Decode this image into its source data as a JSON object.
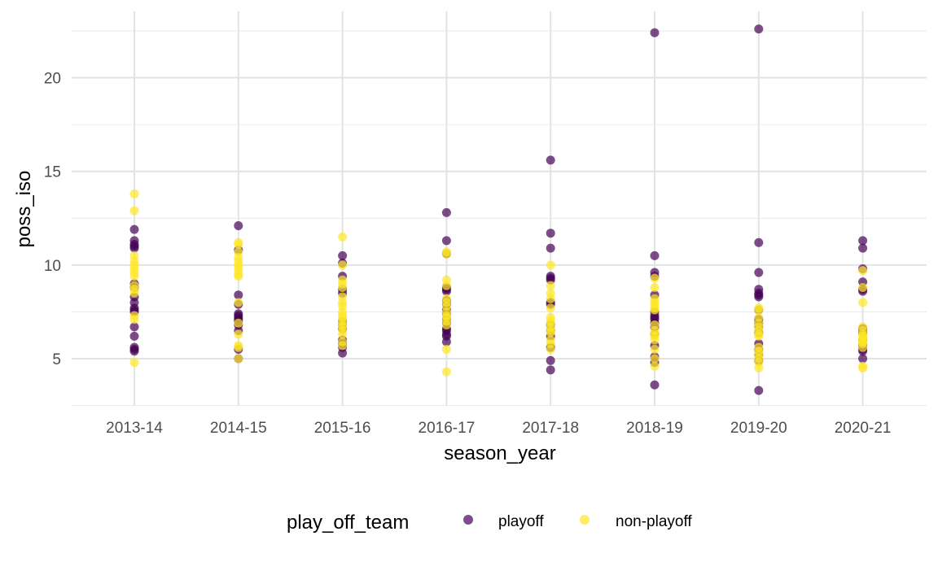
{
  "chart_data": {
    "type": "scatter",
    "xlabel": "season_year",
    "ylabel": "poss_iso",
    "categories": [
      "2013-14",
      "2014-15",
      "2015-16",
      "2016-17",
      "2017-18",
      "2018-19",
      "2019-20",
      "2020-21"
    ],
    "ylim": [
      2.5,
      23.5
    ],
    "yticks": [
      5,
      10,
      15,
      20
    ],
    "grid": true,
    "legend": {
      "title": "play_off_team",
      "position": "bottom",
      "entries": [
        {
          "label": "playoff",
          "color": "#440154"
        },
        {
          "label": "non-playoff",
          "color": "#FDE725"
        }
      ]
    },
    "series": [
      {
        "name": "playoff",
        "color": "#440154",
        "points": [
          [
            "2013-14",
            11.9
          ],
          [
            "2013-14",
            11.3
          ],
          [
            "2013-14",
            11.1
          ],
          [
            "2013-14",
            11.0
          ],
          [
            "2013-14",
            10.9
          ],
          [
            "2013-14",
            9.0
          ],
          [
            "2013-14",
            8.8
          ],
          [
            "2013-14",
            8.3
          ],
          [
            "2013-14",
            8.0
          ],
          [
            "2013-14",
            7.7
          ],
          [
            "2013-14",
            7.6
          ],
          [
            "2013-14",
            7.5
          ],
          [
            "2013-14",
            6.7
          ],
          [
            "2013-14",
            6.2
          ],
          [
            "2013-14",
            5.6
          ],
          [
            "2013-14",
            5.5
          ],
          [
            "2013-14",
            5.4
          ],
          [
            "2014-15",
            12.1
          ],
          [
            "2014-15",
            10.8
          ],
          [
            "2014-15",
            8.4
          ],
          [
            "2014-15",
            7.9
          ],
          [
            "2014-15",
            7.4
          ],
          [
            "2014-15",
            7.3
          ],
          [
            "2014-15",
            7.2
          ],
          [
            "2014-15",
            7.1
          ],
          [
            "2014-15",
            7.0
          ],
          [
            "2014-15",
            6.8
          ],
          [
            "2014-15",
            6.5
          ],
          [
            "2014-15",
            5.5
          ],
          [
            "2014-15",
            5.0
          ],
          [
            "2015-16",
            10.5
          ],
          [
            "2015-16",
            10.1
          ],
          [
            "2015-16",
            9.4
          ],
          [
            "2015-16",
            8.7
          ],
          [
            "2015-16",
            8.5
          ],
          [
            "2015-16",
            7.0
          ],
          [
            "2015-16",
            6.8
          ],
          [
            "2015-16",
            6.6
          ],
          [
            "2015-16",
            6.0
          ],
          [
            "2015-16",
            5.8
          ],
          [
            "2015-16",
            5.6
          ],
          [
            "2015-16",
            5.3
          ],
          [
            "2016-17",
            12.8
          ],
          [
            "2016-17",
            11.3
          ],
          [
            "2016-17",
            10.6
          ],
          [
            "2016-17",
            8.8
          ],
          [
            "2016-17",
            8.7
          ],
          [
            "2016-17",
            8.6
          ],
          [
            "2016-17",
            8.1
          ],
          [
            "2016-17",
            7.9
          ],
          [
            "2016-17",
            7.6
          ],
          [
            "2016-17",
            7.4
          ],
          [
            "2016-17",
            7.1
          ],
          [
            "2016-17",
            6.9
          ],
          [
            "2016-17",
            6.6
          ],
          [
            "2016-17",
            6.5
          ],
          [
            "2016-17",
            6.3
          ],
          [
            "2016-17",
            6.2
          ],
          [
            "2016-17",
            5.9
          ],
          [
            "2017-18",
            15.6
          ],
          [
            "2017-18",
            11.7
          ],
          [
            "2017-18",
            10.9
          ],
          [
            "2017-18",
            9.4
          ],
          [
            "2017-18",
            9.3
          ],
          [
            "2017-18",
            9.2
          ],
          [
            "2017-18",
            8.0
          ],
          [
            "2017-18",
            7.9
          ],
          [
            "2017-18",
            6.8
          ],
          [
            "2017-18",
            6.5
          ],
          [
            "2017-18",
            6.2
          ],
          [
            "2017-18",
            5.6
          ],
          [
            "2017-18",
            4.9
          ],
          [
            "2017-18",
            4.4
          ],
          [
            "2018-19",
            22.4
          ],
          [
            "2018-19",
            10.5
          ],
          [
            "2018-19",
            9.6
          ],
          [
            "2018-19",
            9.4
          ],
          [
            "2018-19",
            8.4
          ],
          [
            "2018-19",
            7.5
          ],
          [
            "2018-19",
            7.3
          ],
          [
            "2018-19",
            7.2
          ],
          [
            "2018-19",
            7.1
          ],
          [
            "2018-19",
            6.9
          ],
          [
            "2018-19",
            6.7
          ],
          [
            "2018-19",
            6.3
          ],
          [
            "2018-19",
            5.7
          ],
          [
            "2018-19",
            5.1
          ],
          [
            "2018-19",
            4.8
          ],
          [
            "2018-19",
            3.6
          ],
          [
            "2019-20",
            22.6
          ],
          [
            "2019-20",
            11.2
          ],
          [
            "2019-20",
            9.6
          ],
          [
            "2019-20",
            8.7
          ],
          [
            "2019-20",
            8.5
          ],
          [
            "2019-20",
            8.4
          ],
          [
            "2019-20",
            8.3
          ],
          [
            "2019-20",
            7.6
          ],
          [
            "2019-20",
            7.1
          ],
          [
            "2019-20",
            6.9
          ],
          [
            "2019-20",
            6.7
          ],
          [
            "2019-20",
            6.4
          ],
          [
            "2019-20",
            5.8
          ],
          [
            "2019-20",
            5.5
          ],
          [
            "2019-20",
            5.2
          ],
          [
            "2019-20",
            4.9
          ],
          [
            "2019-20",
            3.3
          ],
          [
            "2020-21",
            11.3
          ],
          [
            "2020-21",
            10.9
          ],
          [
            "2020-21",
            9.8
          ],
          [
            "2020-21",
            9.1
          ],
          [
            "2020-21",
            8.7
          ],
          [
            "2020-21",
            8.6
          ],
          [
            "2020-21",
            6.6
          ],
          [
            "2020-21",
            6.5
          ],
          [
            "2020-21",
            6.4
          ],
          [
            "2020-21",
            6.0
          ],
          [
            "2020-21",
            5.7
          ],
          [
            "2020-21",
            5.5
          ],
          [
            "2020-21",
            5.4
          ],
          [
            "2020-21",
            5.0
          ]
        ]
      },
      {
        "name": "non-playoff",
        "color": "#FDE725",
        "points": [
          [
            "2013-14",
            13.8
          ],
          [
            "2013-14",
            12.9
          ],
          [
            "2013-14",
            10.5
          ],
          [
            "2013-14",
            10.2
          ],
          [
            "2013-14",
            10.0
          ],
          [
            "2013-14",
            9.8
          ],
          [
            "2013-14",
            9.6
          ],
          [
            "2013-14",
            9.4
          ],
          [
            "2013-14",
            8.9
          ],
          [
            "2013-14",
            8.7
          ],
          [
            "2013-14",
            8.5
          ],
          [
            "2013-14",
            7.3
          ],
          [
            "2013-14",
            7.1
          ],
          [
            "2013-14",
            4.8
          ],
          [
            "2014-15",
            11.2
          ],
          [
            "2014-15",
            11.1
          ],
          [
            "2014-15",
            10.7
          ],
          [
            "2014-15",
            10.4
          ],
          [
            "2014-15",
            10.2
          ],
          [
            "2014-15",
            10.0
          ],
          [
            "2014-15",
            9.9
          ],
          [
            "2014-15",
            9.7
          ],
          [
            "2014-15",
            9.5
          ],
          [
            "2014-15",
            9.4
          ],
          [
            "2014-15",
            8.0
          ],
          [
            "2014-15",
            6.9
          ],
          [
            "2014-15",
            6.3
          ],
          [
            "2014-15",
            5.7
          ],
          [
            "2014-15",
            5.6
          ],
          [
            "2014-15",
            5.0
          ],
          [
            "2015-16",
            11.5
          ],
          [
            "2015-16",
            10.0
          ],
          [
            "2015-16",
            9.2
          ],
          [
            "2015-16",
            9.0
          ],
          [
            "2015-16",
            8.8
          ],
          [
            "2015-16",
            8.3
          ],
          [
            "2015-16",
            8.0
          ],
          [
            "2015-16",
            7.8
          ],
          [
            "2015-16",
            7.5
          ],
          [
            "2015-16",
            7.3
          ],
          [
            "2015-16",
            7.2
          ],
          [
            "2015-16",
            7.0
          ],
          [
            "2015-16",
            6.8
          ],
          [
            "2015-16",
            6.7
          ],
          [
            "2015-16",
            6.5
          ],
          [
            "2015-16",
            6.3
          ],
          [
            "2015-16",
            5.9
          ],
          [
            "2015-16",
            5.7
          ],
          [
            "2016-17",
            10.7
          ],
          [
            "2016-17",
            10.6
          ],
          [
            "2016-17",
            9.2
          ],
          [
            "2016-17",
            8.9
          ],
          [
            "2016-17",
            8.2
          ],
          [
            "2016-17",
            8.0
          ],
          [
            "2016-17",
            7.8
          ],
          [
            "2016-17",
            7.5
          ],
          [
            "2016-17",
            7.3
          ],
          [
            "2016-17",
            7.2
          ],
          [
            "2016-17",
            7.0
          ],
          [
            "2016-17",
            6.8
          ],
          [
            "2016-17",
            5.5
          ],
          [
            "2016-17",
            4.3
          ],
          [
            "2017-18",
            10.0
          ],
          [
            "2017-18",
            8.9
          ],
          [
            "2017-18",
            8.5
          ],
          [
            "2017-18",
            8.2
          ],
          [
            "2017-18",
            7.7
          ],
          [
            "2017-18",
            7.2
          ],
          [
            "2017-18",
            7.0
          ],
          [
            "2017-18",
            6.9
          ],
          [
            "2017-18",
            6.7
          ],
          [
            "2017-18",
            6.5
          ],
          [
            "2017-18",
            6.4
          ],
          [
            "2017-18",
            6.0
          ],
          [
            "2017-18",
            5.8
          ],
          [
            "2017-18",
            5.5
          ],
          [
            "2018-19",
            9.3
          ],
          [
            "2018-19",
            8.8
          ],
          [
            "2018-19",
            8.2
          ],
          [
            "2018-19",
            8.0
          ],
          [
            "2018-19",
            7.9
          ],
          [
            "2018-19",
            7.7
          ],
          [
            "2018-19",
            7.6
          ],
          [
            "2018-19",
            6.8
          ],
          [
            "2018-19",
            6.5
          ],
          [
            "2018-19",
            6.3
          ],
          [
            "2018-19",
            6.2
          ],
          [
            "2018-19",
            6.0
          ],
          [
            "2018-19",
            5.5
          ],
          [
            "2018-19",
            5.0
          ],
          [
            "2018-19",
            4.6
          ],
          [
            "2019-20",
            7.7
          ],
          [
            "2019-20",
            7.6
          ],
          [
            "2019-20",
            7.2
          ],
          [
            "2019-20",
            6.9
          ],
          [
            "2019-20",
            6.7
          ],
          [
            "2019-20",
            6.5
          ],
          [
            "2019-20",
            6.3
          ],
          [
            "2019-20",
            6.2
          ],
          [
            "2019-20",
            5.6
          ],
          [
            "2019-20",
            5.4
          ],
          [
            "2019-20",
            5.2
          ],
          [
            "2019-20",
            5.0
          ],
          [
            "2019-20",
            4.8
          ],
          [
            "2019-20",
            4.5
          ],
          [
            "2020-21",
            9.7
          ],
          [
            "2020-21",
            8.8
          ],
          [
            "2020-21",
            8.0
          ],
          [
            "2020-21",
            6.7
          ],
          [
            "2020-21",
            6.5
          ],
          [
            "2020-21",
            6.3
          ],
          [
            "2020-21",
            6.2
          ],
          [
            "2020-21",
            6.1
          ],
          [
            "2020-21",
            6.0
          ],
          [
            "2020-21",
            5.9
          ],
          [
            "2020-21",
            5.8
          ],
          [
            "2020-21",
            5.6
          ],
          [
            "2020-21",
            4.6
          ],
          [
            "2020-21",
            4.5
          ]
        ]
      }
    ]
  }
}
